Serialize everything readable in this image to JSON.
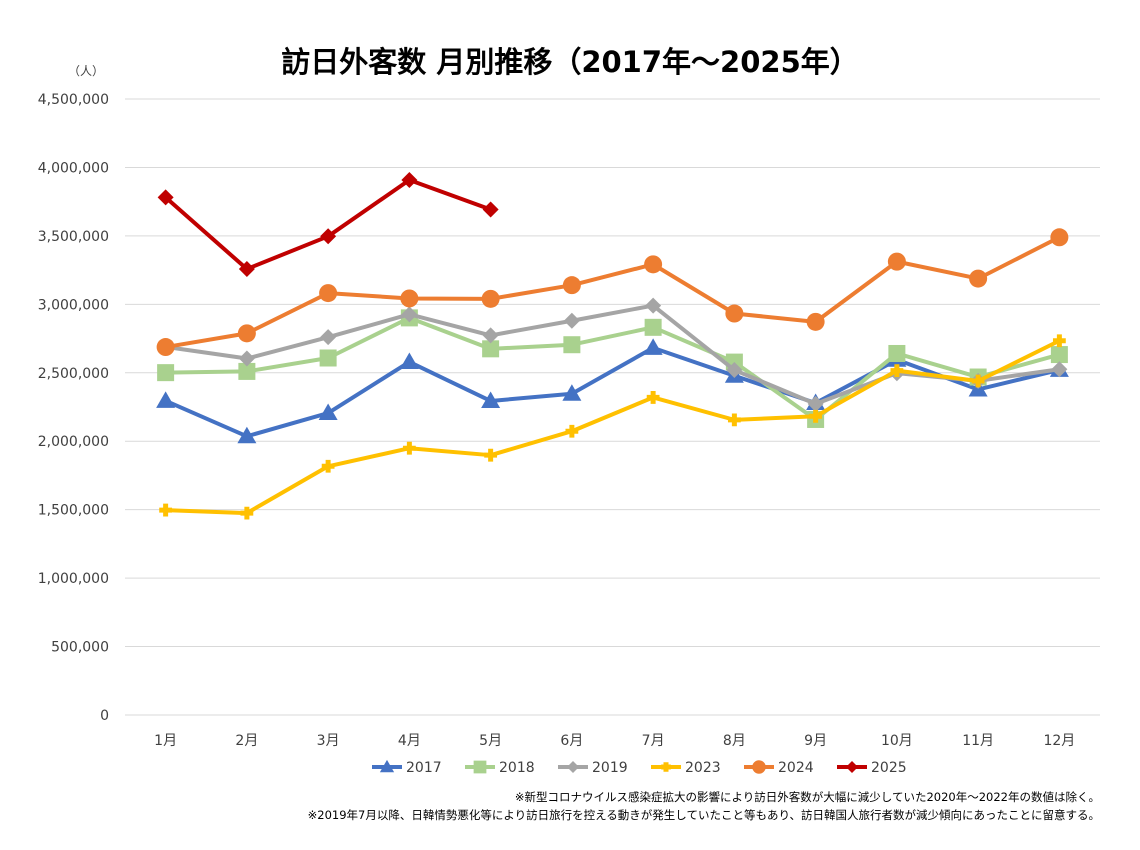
{
  "chart_data": {
    "type": "line",
    "title": "訪日外客数 月別推移（2017年～2025年）",
    "ylabel": "（人）",
    "xlabel": "",
    "ylim": [
      0,
      4500000
    ],
    "y_ticks": [
      0,
      500000,
      1000000,
      1500000,
      2000000,
      2500000,
      3000000,
      3500000,
      4000000,
      4500000
    ],
    "y_tick_labels": [
      "0",
      "500,000",
      "1,000,000",
      "1,500,000",
      "2,000,000",
      "2,500,000",
      "3,000,000",
      "3,500,000",
      "4,000,000",
      "4,500,000"
    ],
    "categories": [
      "1月",
      "2月",
      "3月",
      "4月",
      "5月",
      "6月",
      "7月",
      "8月",
      "9月",
      "10月",
      "11月",
      "12月"
    ],
    "grid": true,
    "legend_position": "bottom",
    "series": [
      {
        "name": "2017",
        "color": "#4472c4",
        "marker": "triangle",
        "values": [
          2295000,
          2036000,
          2206000,
          2579000,
          2294000,
          2347000,
          2682000,
          2478000,
          2279000,
          2595000,
          2378000,
          2521000
        ]
      },
      {
        "name": "2018",
        "color": "#a9d18e",
        "marker": "square",
        "values": [
          2501000,
          2510000,
          2608000,
          2901000,
          2675000,
          2705000,
          2832000,
          2578000,
          2159000,
          2641000,
          2469000,
          2633000
        ]
      },
      {
        "name": "2019",
        "color": "#a5a5a5",
        "marker": "diamond",
        "values": [
          2689000,
          2604000,
          2760000,
          2927000,
          2773000,
          2880000,
          2991000,
          2520000,
          2273000,
          2497000,
          2441000,
          2526000
        ]
      },
      {
        "name": "2023",
        "color": "#ffc000",
        "marker": "cross",
        "values": [
          1497000,
          1475000,
          1817000,
          1949000,
          1898000,
          2073000,
          2320000,
          2156000,
          2182000,
          2516000,
          2440000,
          2734000
        ]
      },
      {
        "name": "2024",
        "color": "#ed7d31",
        "marker": "circle",
        "values": [
          2688000,
          2788000,
          3082000,
          3043000,
          3040000,
          3140000,
          3292000,
          2933000,
          2872000,
          3312000,
          3188000,
          3490000
        ]
      },
      {
        "name": "2025",
        "color": "#c00000",
        "marker": "diamond",
        "values": [
          3781000,
          3258000,
          3497000,
          3908000,
          3693000,
          null,
          null,
          null,
          null,
          null,
          null,
          null
        ]
      }
    ],
    "notes": [
      "※新型コロナウイルス感染症拡大の影響により訪日外客数が大幅に減少していた2020年～2022年の数値は除く。",
      "※2019年7月以降、日韓情勢悪化等により訪日旅行を控える動きが発生していたこと等もあり、訪日韓国人旅行者数が減少傾向にあったことに留意する。"
    ]
  }
}
